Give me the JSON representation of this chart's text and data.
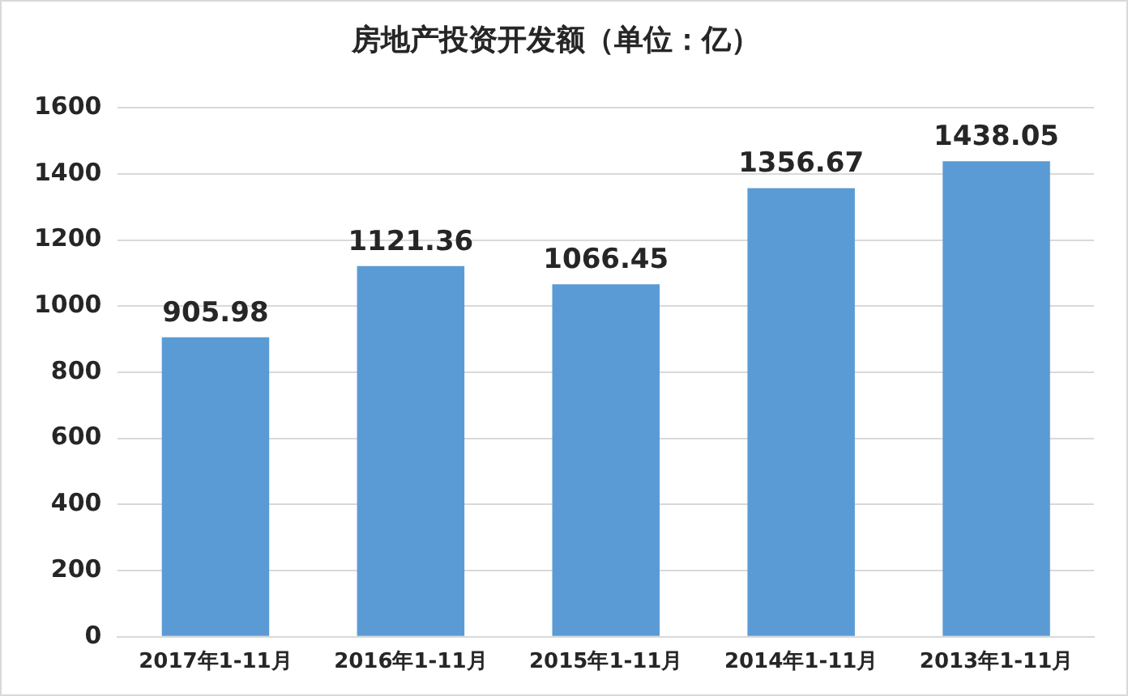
{
  "chart_data": {
    "type": "bar",
    "title": "房地产投资开发额（单位：亿）",
    "categories": [
      "2017年1-11月",
      "2016年1-11月",
      "2015年1-11月",
      "2014年1-11月",
      "2013年1-11月"
    ],
    "values": [
      905.98,
      1121.36,
      1066.45,
      1356.67,
      1438.05
    ],
    "color": "#5b9bd5",
    "ylim": [
      0,
      1600
    ],
    "yticks": [
      0,
      200,
      400,
      600,
      800,
      1000,
      1200,
      1400,
      1600
    ],
    "grid": "y",
    "data_labels": true
  }
}
